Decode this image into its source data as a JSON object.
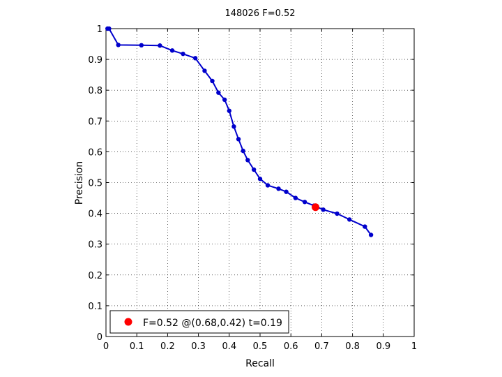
{
  "chart_data": {
    "type": "line",
    "title": "148026 F=0.52",
    "xlabel": "Recall",
    "ylabel": "Precision",
    "xlim": [
      0,
      1
    ],
    "ylim": [
      0,
      1
    ],
    "xticks": [
      "0",
      "0.1",
      "0.2",
      "0.3",
      "0.4",
      "0.5",
      "0.6",
      "0.7",
      "0.8",
      "0.9",
      "1"
    ],
    "yticks": [
      "0",
      "0.1",
      "0.2",
      "0.3",
      "0.4",
      "0.5",
      "0.6",
      "0.7",
      "0.8",
      "0.9",
      "1"
    ],
    "grid": true,
    "legend_position": "bottom-left",
    "series": [
      {
        "color": "#0000cc",
        "x": [
          0.005,
          0.01,
          0.04,
          0.115,
          0.175,
          0.215,
          0.25,
          0.29,
          0.32,
          0.345,
          0.365,
          0.385,
          0.4,
          0.415,
          0.43,
          0.445,
          0.46,
          0.48,
          0.5,
          0.525,
          0.56,
          0.585,
          0.615,
          0.645,
          0.675,
          0.705,
          0.75,
          0.79,
          0.84,
          0.86
        ],
        "y": [
          1.0,
          1.0,
          0.947,
          0.946,
          0.945,
          0.929,
          0.918,
          0.904,
          0.863,
          0.83,
          0.792,
          0.769,
          0.733,
          0.682,
          0.641,
          0.603,
          0.573,
          0.542,
          0.512,
          0.491,
          0.48,
          0.47,
          0.45,
          0.437,
          0.425,
          0.412,
          0.399,
          0.38,
          0.357,
          0.33
        ]
      }
    ],
    "highlight": {
      "x": 0.68,
      "y": 0.42,
      "color": "#ff0000"
    },
    "legend_label": "F=0.52 @(0.68,0.42) t=0.19"
  }
}
